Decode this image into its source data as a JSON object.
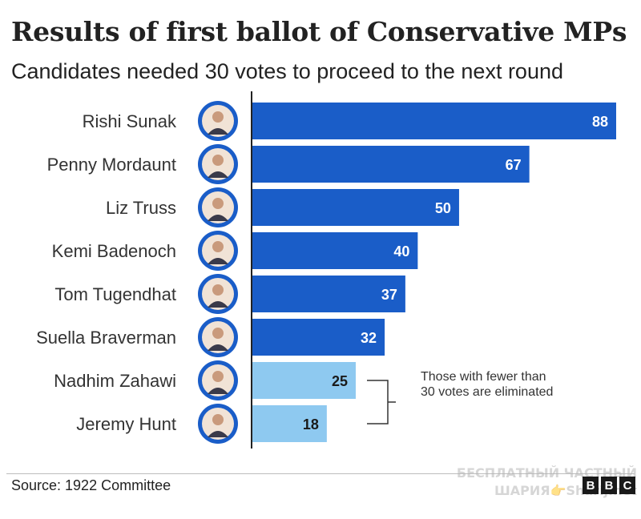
{
  "title": "Results of first ballot of Conservative MPs",
  "subtitle": "Candidates needed 30 votes to proceed to the next round",
  "source": "Source: 1922 Committee",
  "logo": [
    "B",
    "B",
    "C"
  ],
  "watermark": [
    "БЕСПЛАТНЫЙ ЧАСТНЫЙ",
    "ШАРИЯ👉Sharij.net"
  ],
  "colors": {
    "bar_dark": "#1a5dc8",
    "bar_light": "#8ec9f0",
    "avatar_ring": "#1a5dc8"
  },
  "chart_data": {
    "type": "bar",
    "orientation": "horizontal",
    "categories": [
      "Rishi Sunak",
      "Penny Mordaunt",
      "Liz Truss",
      "Kemi Badenoch",
      "Tom Tugendhat",
      "Suella Braverman",
      "Nadhim Zahawi",
      "Jeremy Hunt"
    ],
    "values": [
      88,
      67,
      50,
      40,
      37,
      32,
      25,
      18
    ],
    "threshold": 30,
    "xlim": [
      0,
      88
    ],
    "annotation": {
      "lines": [
        "Those with fewer than",
        "30 votes are eliminated"
      ]
    },
    "grid": false,
    "legend": "none"
  }
}
